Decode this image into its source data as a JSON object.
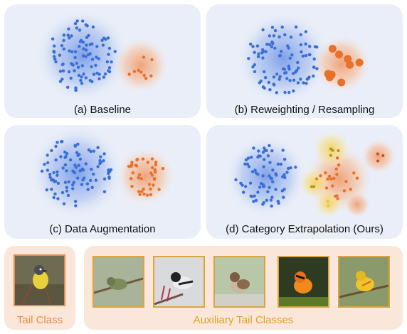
{
  "panels": [
    {
      "caption": "(a) Baseline"
    },
    {
      "caption": "(b) Reweighting / Resampling"
    },
    {
      "caption": "(c) Data Augmentation"
    },
    {
      "caption": "(d) Category Extrapolation (Ours)"
    }
  ],
  "tail_class_label": "Tail Class",
  "auxiliary_label": "Auxiliary Tail Classes",
  "colors": {
    "head_dot": "#3a6fd8",
    "tail_dot": "#e8702a",
    "aux_dot": "#b8950a",
    "panel_bg": "#e9eef8",
    "bottom_bg": "#fbe6da",
    "label_orange": "#e88a4a",
    "label_gold": "#d9a326"
  },
  "images": [
    "yellow-breasted-warbler",
    "green-warbler",
    "black-white-warbler",
    "sparrow",
    "blackburnian-warbler",
    "yellow-warbler"
  ]
}
